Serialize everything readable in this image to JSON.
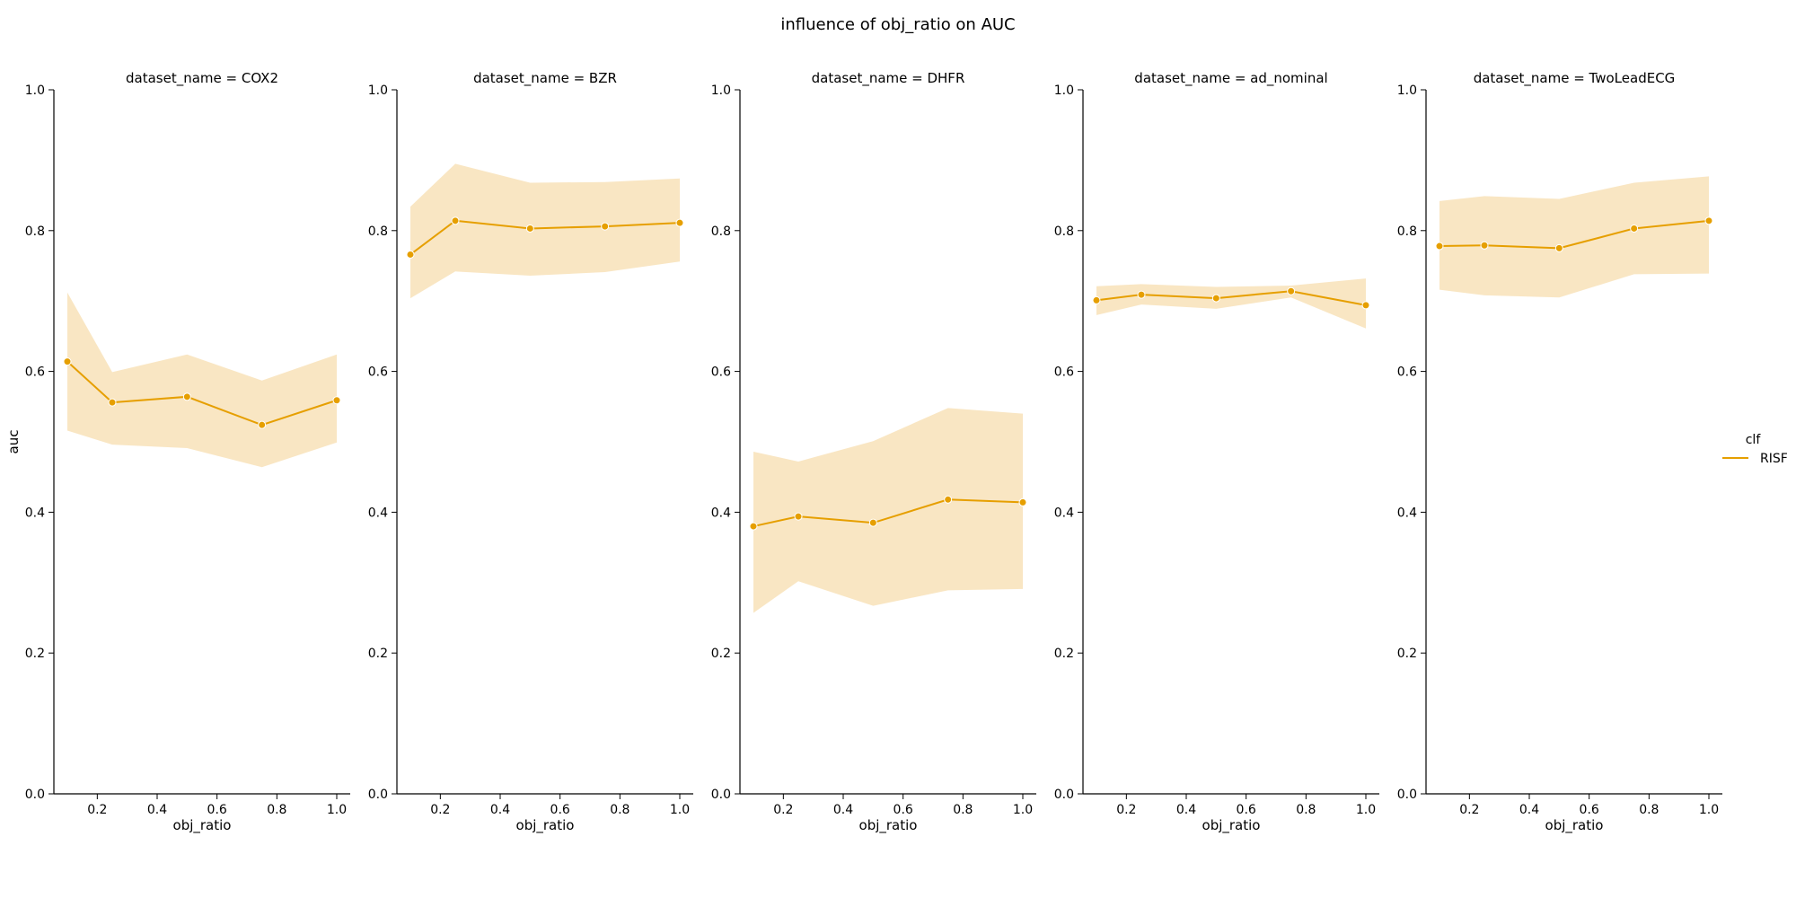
{
  "figure": {
    "title": "influence of obj_ratio on AUC",
    "accent_color": "#e69f00",
    "band_color": "#f8e2b8"
  },
  "legend": {
    "title": "clf",
    "entries": [
      "RISF"
    ],
    "placement": "right"
  },
  "chart_data": [
    {
      "type": "line",
      "title": "dataset_name = COX2",
      "xlabel": "obj_ratio",
      "ylabel": "auc",
      "xlim": [
        0.055,
        1.045
      ],
      "ylim": [
        0.0,
        1.0
      ],
      "xticks": [
        "0.2",
        "0.4",
        "0.6",
        "0.8",
        "1.0"
      ],
      "yticks": [
        "0.0",
        "0.2",
        "0.4",
        "0.6",
        "0.8",
        "1.0"
      ],
      "x": [
        0.1,
        0.25,
        0.5,
        0.75,
        1.0
      ],
      "series": [
        {
          "name": "RISF",
          "values": [
            0.614,
            0.556,
            0.564,
            0.524,
            0.559
          ],
          "ci_lower": [
            0.516,
            0.496,
            0.491,
            0.464,
            0.499
          ],
          "ci_upper": [
            0.712,
            0.599,
            0.624,
            0.587,
            0.624
          ]
        }
      ]
    },
    {
      "type": "line",
      "title": "dataset_name = BZR",
      "xlabel": "obj_ratio",
      "ylabel": "",
      "xlim": [
        0.055,
        1.045
      ],
      "ylim": [
        0.0,
        1.0
      ],
      "xticks": [
        "0.2",
        "0.4",
        "0.6",
        "0.8",
        "1.0"
      ],
      "yticks": [
        "0.0",
        "0.2",
        "0.4",
        "0.6",
        "0.8",
        "1.0"
      ],
      "x": [
        0.1,
        0.25,
        0.5,
        0.75,
        1.0
      ],
      "series": [
        {
          "name": "RISF",
          "values": [
            0.766,
            0.814,
            0.803,
            0.806,
            0.811
          ],
          "ci_lower": [
            0.704,
            0.742,
            0.736,
            0.741,
            0.756
          ],
          "ci_upper": [
            0.834,
            0.895,
            0.868,
            0.869,
            0.874
          ]
        }
      ]
    },
    {
      "type": "line",
      "title": "dataset_name = DHFR",
      "xlabel": "obj_ratio",
      "ylabel": "",
      "xlim": [
        0.055,
        1.045
      ],
      "ylim": [
        0.0,
        1.0
      ],
      "xticks": [
        "0.2",
        "0.4",
        "0.6",
        "0.8",
        "1.0"
      ],
      "yticks": [
        "0.0",
        "0.2",
        "0.4",
        "0.6",
        "0.8",
        "1.0"
      ],
      "x": [
        0.1,
        0.25,
        0.5,
        0.75,
        1.0
      ],
      "series": [
        {
          "name": "RISF",
          "values": [
            0.38,
            0.394,
            0.385,
            0.418,
            0.414
          ],
          "ci_lower": [
            0.257,
            0.302,
            0.267,
            0.289,
            0.291
          ],
          "ci_upper": [
            0.486,
            0.472,
            0.501,
            0.548,
            0.54
          ]
        }
      ]
    },
    {
      "type": "line",
      "title": "dataset_name = ad_nominal",
      "xlabel": "obj_ratio",
      "ylabel": "",
      "xlim": [
        0.055,
        1.045
      ],
      "ylim": [
        0.0,
        1.0
      ],
      "xticks": [
        "0.2",
        "0.4",
        "0.6",
        "0.8",
        "1.0"
      ],
      "yticks": [
        "0.0",
        "0.2",
        "0.4",
        "0.6",
        "0.8",
        "1.0"
      ],
      "x": [
        0.1,
        0.25,
        0.5,
        0.75,
        1.0
      ],
      "series": [
        {
          "name": "RISF",
          "values": [
            0.701,
            0.709,
            0.704,
            0.714,
            0.694
          ],
          "ci_lower": [
            0.68,
            0.695,
            0.689,
            0.705,
            0.661
          ],
          "ci_upper": [
            0.721,
            0.724,
            0.72,
            0.722,
            0.732
          ]
        }
      ]
    },
    {
      "type": "line",
      "title": "dataset_name = TwoLeadECG",
      "xlabel": "obj_ratio",
      "ylabel": "",
      "xlim": [
        0.055,
        1.045
      ],
      "ylim": [
        0.0,
        1.0
      ],
      "xticks": [
        "0.2",
        "0.4",
        "0.6",
        "0.8",
        "1.0"
      ],
      "yticks": [
        "0.0",
        "0.2",
        "0.4",
        "0.6",
        "0.8",
        "1.0"
      ],
      "x": [
        0.1,
        0.25,
        0.5,
        0.75,
        1.0
      ],
      "series": [
        {
          "name": "RISF",
          "values": [
            0.778,
            0.779,
            0.775,
            0.803,
            0.814
          ],
          "ci_lower": [
            0.716,
            0.708,
            0.705,
            0.738,
            0.739
          ],
          "ci_upper": [
            0.842,
            0.849,
            0.845,
            0.868,
            0.877
          ]
        }
      ]
    }
  ]
}
